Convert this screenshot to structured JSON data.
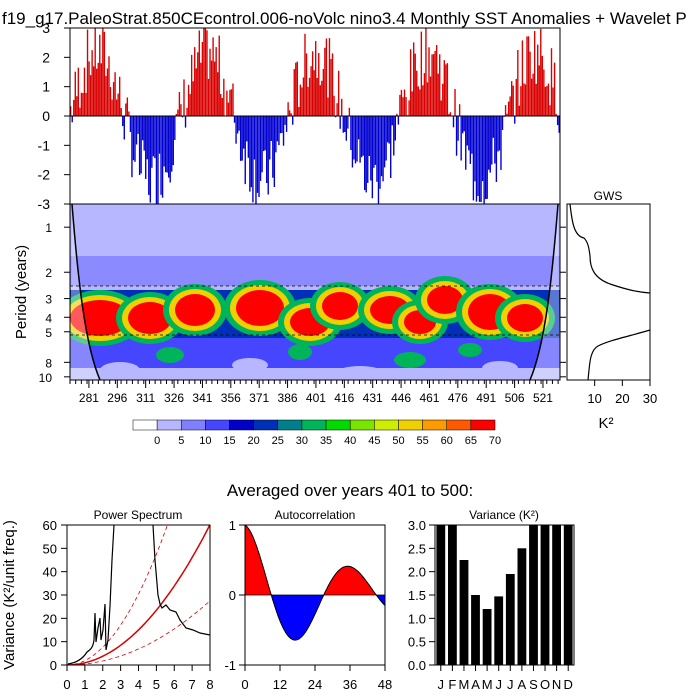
{
  "title": "f19_g17.PaleoStrat.850CEcontrol.006-noVolc nino3.4 Monthly SST Anomalies + Wavelet P",
  "colors": {
    "pos": "#d90000",
    "neg": "#0000d0",
    "axis": "#000000"
  },
  "chart_data": [
    {
      "id": "timeseries",
      "type": "bar",
      "title": "",
      "ylabel": "",
      "ylim": [
        -3,
        3
      ],
      "y_ticks": [
        "-3",
        "-2",
        "-1",
        "0",
        "1",
        "2",
        "3"
      ],
      "x_range": [
        271,
        530
      ],
      "note": "monthly nino3.4 SST anomaly bars, red positive / blue negative"
    },
    {
      "id": "wavelet",
      "type": "heatmap",
      "ylabel": "Period (years)",
      "y_ticks": [
        "1",
        "2",
        "3",
        "4",
        "5",
        "8",
        "10"
      ],
      "x_ticks": [
        "281",
        "296",
        "311",
        "326",
        "341",
        "356",
        "371",
        "386",
        "401",
        "416",
        "431",
        "446",
        "461",
        "476",
        "491",
        "506",
        "521"
      ],
      "colorbar_ticks": [
        "0",
        "5",
        "10",
        "15",
        "20",
        "25",
        "30",
        "35",
        "40",
        "45",
        "50",
        "55",
        "60",
        "65",
        "70"
      ],
      "colorbar_colors": [
        "#ffffff",
        "#b7b7ff",
        "#8080ff",
        "#4646ff",
        "#0000c8",
        "#0030b8",
        "#00808a",
        "#00b45a",
        "#00dc00",
        "#7ae600",
        "#cdee00",
        "#f0d000",
        "#ff9a00",
        "#ff5a00",
        "#ff0000"
      ]
    },
    {
      "id": "gws",
      "type": "line",
      "title": "GWS",
      "xlabel": "K²",
      "x_ticks": [
        "10",
        "20",
        "30"
      ],
      "xlim": [
        0,
        30
      ]
    }
  ],
  "subtitle": "Averaged over years 401 to 500:",
  "power": {
    "type": "line",
    "title": "Power Spectrum",
    "ylabel": "Variance (K²/unit freq.)",
    "ylim": [
      0,
      60
    ],
    "xlim": [
      0,
      8
    ],
    "y_ticks": [
      "0",
      "10",
      "20",
      "30",
      "40",
      "50",
      "60"
    ],
    "x_ticks": [
      "0",
      "1",
      "2",
      "3",
      "4",
      "5",
      "6",
      "7",
      "8"
    ]
  },
  "autocorr": {
    "type": "area",
    "title": "Autocorrelation",
    "ylim": [
      -1,
      1
    ],
    "xlim": [
      0,
      48
    ],
    "y_ticks": [
      "-1",
      "0",
      "1"
    ],
    "x_ticks": [
      "0",
      "12",
      "24",
      "36",
      "48"
    ]
  },
  "variance": {
    "type": "bar",
    "title": "Variance (K²)",
    "ylim": [
      0,
      3
    ],
    "y_ticks": [
      "0.0",
      "0.5",
      "1.0",
      "1.5",
      "2.0",
      "2.5",
      "3.0"
    ],
    "categories": [
      "J",
      "F",
      "M",
      "A",
      "M",
      "J",
      "J",
      "A",
      "S",
      "O",
      "N",
      "D"
    ],
    "values": [
      3.0,
      3.0,
      2.25,
      1.5,
      1.2,
      1.47,
      1.95,
      2.5,
      3.0,
      3.0,
      3.0,
      3.0
    ]
  }
}
